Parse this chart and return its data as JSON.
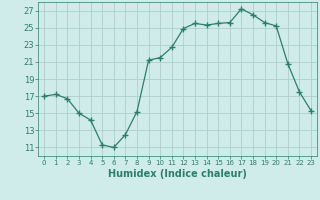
{
  "x": [
    0,
    1,
    2,
    3,
    4,
    5,
    6,
    7,
    8,
    9,
    10,
    11,
    12,
    13,
    14,
    15,
    16,
    17,
    18,
    19,
    20,
    21,
    22,
    23
  ],
  "y": [
    17,
    17.2,
    16.7,
    15,
    14.2,
    11.3,
    11.0,
    12.5,
    15.2,
    21.2,
    21.5,
    22.7,
    24.9,
    25.5,
    25.3,
    25.5,
    25.6,
    27.2,
    26.5,
    25.6,
    25.2,
    20.8,
    17.5,
    15.3
  ],
  "line_color": "#2d7d6e",
  "marker": "+",
  "marker_size": 4,
  "marker_linewidth": 1.0,
  "bg_color": "#d0ecea",
  "grid_color": "#aecfcc",
  "xlabel": "Humidex (Indice chaleur)",
  "yticks": [
    11,
    13,
    15,
    17,
    19,
    21,
    23,
    25,
    27
  ],
  "xlim": [
    -0.5,
    23.5
  ],
  "ylim": [
    10.0,
    28.0
  ],
  "xticks": [
    0,
    1,
    2,
    3,
    4,
    5,
    6,
    7,
    8,
    9,
    10,
    11,
    12,
    13,
    14,
    15,
    16,
    17,
    18,
    19,
    20,
    21,
    22,
    23
  ]
}
